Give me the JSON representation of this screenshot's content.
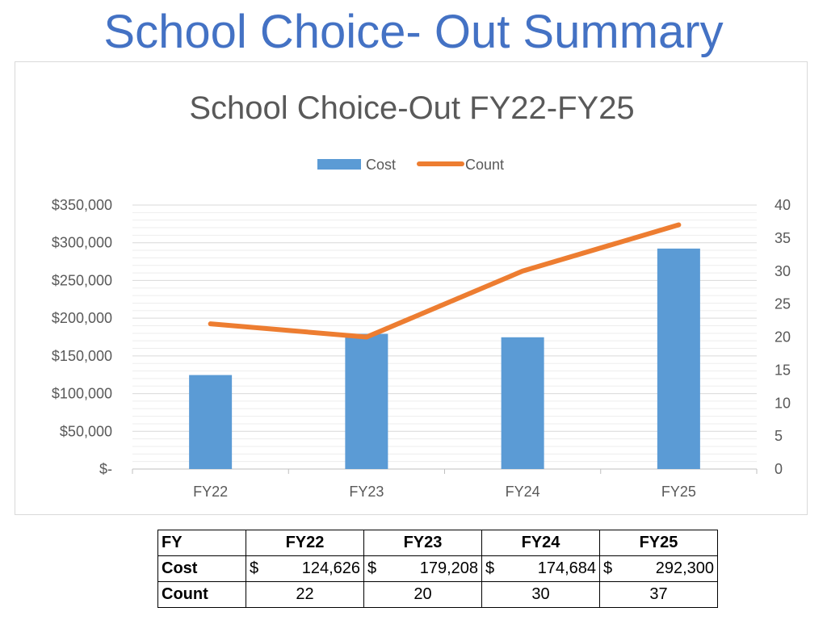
{
  "slide": {
    "title": "School Choice- Out Summary"
  },
  "chart_data": {
    "type": "bar",
    "title": "School Choice-Out FY22-FY25",
    "categories": [
      "FY22",
      "FY23",
      "FY24",
      "FY25"
    ],
    "series": [
      {
        "name": "Cost",
        "type": "bar",
        "axis": "left",
        "values": [
          124626,
          179208,
          174684,
          292300
        ],
        "color": "#5b9bd5"
      },
      {
        "name": "Count",
        "type": "line",
        "axis": "right",
        "values": [
          22,
          20,
          30,
          37
        ],
        "color": "#ed7d31"
      }
    ],
    "y_left": {
      "range": [
        0,
        350000
      ],
      "tick_labels": [
        "$-",
        "$50,000",
        "$100,000",
        "$150,000",
        "$200,000",
        "$250,000",
        "$300,000",
        "$350,000"
      ]
    },
    "y_right": {
      "range": [
        0,
        40
      ],
      "tick_labels": [
        "0",
        "5",
        "10",
        "15",
        "20",
        "25",
        "30",
        "35",
        "40"
      ]
    },
    "legend": {
      "placement": "top-center",
      "items": [
        "Cost",
        "Count"
      ]
    },
    "grid": true,
    "colors": {
      "gridline": "#d9d9d9",
      "axis_text": "#595959",
      "title_text": "#595959"
    }
  },
  "table": {
    "corner": "FY",
    "columns": [
      "FY22",
      "FY23",
      "FY24",
      "FY25"
    ],
    "cost_label": "Cost",
    "count_label": "Count",
    "currency_symbol": "$",
    "costs": [
      "124,626",
      "179,208",
      "174,684",
      "292,300"
    ],
    "counts": [
      "22",
      "20",
      "30",
      "37"
    ]
  }
}
